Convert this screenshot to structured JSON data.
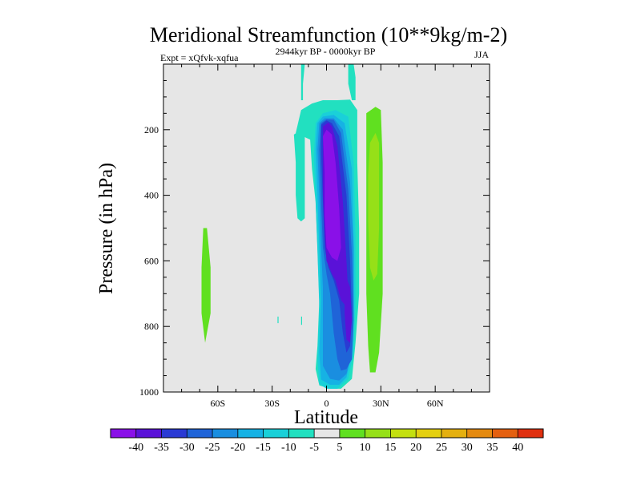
{
  "chart_data": {
    "type": "heatmap",
    "title": "Meridional Streamfunction (10**9kg/m-2)",
    "left_label": "Expt = xQfvk-xqfua",
    "center_label": "2944kyr BP - 0000kyr BP",
    "right_label": "JJA",
    "xlabel": "Latitude",
    "ylabel": "Pressure (in hPa)",
    "xlim": [
      -90,
      90
    ],
    "ylim": [
      1000,
      0
    ],
    "x_ticks": [
      {
        "value": -60,
        "label": "60S"
      },
      {
        "value": -30,
        "label": "30S"
      },
      {
        "value": 0,
        "label": "0"
      },
      {
        "value": 30,
        "label": "30N"
      },
      {
        "value": 60,
        "label": "60N"
      }
    ],
    "y_ticks": [
      {
        "value": 200,
        "label": "200"
      },
      {
        "value": 400,
        "label": "400"
      },
      {
        "value": 600,
        "label": "600"
      },
      {
        "value": 800,
        "label": "800"
      },
      {
        "value": 1000,
        "label": "1000"
      }
    ],
    "background_color": "#e6e6e6",
    "colorbar": {
      "levels": [
        -40,
        -35,
        -30,
        -25,
        -20,
        -15,
        -10,
        -5,
        5,
        10,
        15,
        20,
        25,
        30,
        35,
        40
      ],
      "labels": [
        "-40",
        "-35",
        "-30",
        "-25",
        "-20",
        "-15",
        "-10",
        "-5",
        "5",
        "10",
        "15",
        "20",
        "25",
        "30",
        "35",
        "40"
      ],
      "colors": [
        "#8a10e8",
        "#5a12d8",
        "#2a3ad4",
        "#1f64d8",
        "#1a8ee0",
        "#16b2e4",
        "#1ad0d8",
        "#22e0c0",
        "#e6e6e6",
        "#60e020",
        "#96e018",
        "#c4e010",
        "#e4d010",
        "#e4b010",
        "#e48a10",
        "#e46010",
        "#e03010"
      ]
    },
    "features": [
      {
        "name": "southern-cell-outer",
        "bin": 7,
        "points": [
          [
            -17,
            210
          ],
          [
            -14,
            140
          ],
          [
            -8,
            120
          ],
          [
            -2,
            110
          ],
          [
            6,
            110
          ],
          [
            13,
            108
          ],
          [
            17,
            140
          ],
          [
            17,
            300
          ],
          [
            18,
            500
          ],
          [
            18,
            700
          ],
          [
            16,
            850
          ],
          [
            14,
            960
          ],
          [
            8,
            990
          ],
          [
            2,
            990
          ],
          [
            -4,
            980
          ],
          [
            -6,
            930
          ],
          [
            -5,
            860
          ],
          [
            -4,
            720
          ],
          [
            -5,
            560
          ],
          [
            -6,
            420
          ],
          [
            -8,
            320
          ],
          [
            -9,
            230
          ]
        ]
      },
      {
        "name": "southern-cell-left-arm",
        "bin": 7,
        "points": [
          [
            -18,
            215
          ],
          [
            -14,
            200
          ],
          [
            -12,
            205
          ],
          [
            -12,
            300
          ],
          [
            -12,
            420
          ],
          [
            -12,
            470
          ],
          [
            -14,
            480
          ],
          [
            -16,
            470
          ],
          [
            -17,
            400
          ],
          [
            -17,
            300
          ]
        ]
      },
      {
        "name": "southern-cell-l6",
        "bin": 6,
        "points": [
          [
            -6,
            180
          ],
          [
            -2,
            150
          ],
          [
            5,
            140
          ],
          [
            12,
            160
          ],
          [
            15,
            300
          ],
          [
            16,
            520
          ],
          [
            16,
            720
          ],
          [
            15,
            880
          ],
          [
            12,
            960
          ],
          [
            6,
            990
          ],
          [
            0,
            990
          ],
          [
            -4,
            975
          ],
          [
            -5,
            900
          ],
          [
            -4,
            740
          ],
          [
            -5,
            570
          ],
          [
            -6,
            420
          ],
          [
            -7,
            280
          ]
        ]
      },
      {
        "name": "southern-cell-l5",
        "bin": 5,
        "points": [
          [
            -5,
            180
          ],
          [
            -2,
            160
          ],
          [
            4,
            155
          ],
          [
            10,
            180
          ],
          [
            14,
            320
          ],
          [
            15,
            540
          ],
          [
            15,
            740
          ],
          [
            14,
            880
          ],
          [
            11,
            955
          ],
          [
            7,
            978
          ],
          [
            2,
            978
          ],
          [
            -3,
            962
          ],
          [
            -4,
            880
          ],
          [
            -3,
            720
          ],
          [
            -4,
            560
          ],
          [
            -5,
            400
          ],
          [
            -6,
            260
          ]
        ]
      },
      {
        "name": "southern-cell-l4",
        "bin": 4,
        "points": [
          [
            -4,
            180
          ],
          [
            -1,
            165
          ],
          [
            4,
            165
          ],
          [
            9,
            200
          ],
          [
            13,
            360
          ],
          [
            15,
            560
          ],
          [
            15,
            760
          ],
          [
            14,
            880
          ],
          [
            11,
            945
          ],
          [
            7,
            965
          ],
          [
            2,
            960
          ],
          [
            -2,
            920
          ],
          [
            -2,
            820
          ],
          [
            -2,
            680
          ],
          [
            -3,
            560
          ],
          [
            -4,
            400
          ],
          [
            -5,
            260
          ]
        ]
      },
      {
        "name": "southern-cell-l3",
        "bin": 3,
        "points": [
          [
            -3,
            180
          ],
          [
            0,
            168
          ],
          [
            4,
            170
          ],
          [
            8,
            210
          ],
          [
            12,
            380
          ],
          [
            14,
            580
          ],
          [
            15,
            780
          ],
          [
            14,
            900
          ],
          [
            11,
            930
          ],
          [
            8,
            935
          ],
          [
            6,
            900
          ],
          [
            4,
            820
          ],
          [
            2,
            700
          ],
          [
            0,
            640
          ],
          [
            -2,
            560
          ],
          [
            -3,
            420
          ],
          [
            -4,
            260
          ]
        ]
      },
      {
        "name": "southern-cell-l2",
        "bin": 2,
        "points": [
          [
            -3,
            185
          ],
          [
            0,
            172
          ],
          [
            3,
            180
          ],
          [
            7,
            220
          ],
          [
            11,
            400
          ],
          [
            13,
            600
          ],
          [
            14,
            760
          ],
          [
            13,
            860
          ],
          [
            11,
            880
          ],
          [
            9,
            820
          ],
          [
            7,
            720
          ],
          [
            4,
            660
          ],
          [
            1,
            620
          ],
          [
            -1,
            560
          ],
          [
            -2,
            420
          ],
          [
            -3,
            270
          ]
        ]
      },
      {
        "name": "southern-cell-l1",
        "bin": 1,
        "points": [
          [
            -2,
            190
          ],
          [
            1,
            178
          ],
          [
            3,
            190
          ],
          [
            6,
            250
          ],
          [
            9,
            420
          ],
          [
            11,
            600
          ],
          [
            12,
            700
          ],
          [
            11,
            740
          ],
          [
            8,
            720
          ],
          [
            5,
            660
          ],
          [
            3,
            640
          ],
          [
            0,
            600
          ],
          [
            -1,
            520
          ],
          [
            -2,
            400
          ],
          [
            -2,
            280
          ]
        ]
      },
      {
        "name": "southern-cell-core",
        "bin": 0,
        "points": [
          [
            -2,
            220
          ],
          [
            0,
            200
          ],
          [
            3,
            215
          ],
          [
            5,
            300
          ],
          [
            7,
            440
          ],
          [
            8,
            560
          ],
          [
            6,
            600
          ],
          [
            3,
            590
          ],
          [
            0,
            560
          ],
          [
            -1,
            460
          ],
          [
            -1,
            330
          ]
        ]
      },
      {
        "name": "southern-cell-lower-core",
        "bin": 1,
        "points": [
          [
            10,
            640
          ],
          [
            13,
            680
          ],
          [
            14,
            780
          ],
          [
            13,
            850
          ],
          [
            11,
            840
          ],
          [
            10,
            760
          ]
        ]
      },
      {
        "name": "upper-left-filament",
        "bin": 7,
        "points": [
          [
            -14,
            0
          ],
          [
            -12,
            0
          ],
          [
            -13,
            60
          ],
          [
            -13,
            110
          ],
          [
            -14,
            110
          ],
          [
            -14,
            50
          ]
        ]
      },
      {
        "name": "upper-right-filament",
        "bin": 7,
        "points": [
          [
            12,
            0
          ],
          [
            15,
            0
          ],
          [
            16,
            40
          ],
          [
            16,
            110
          ],
          [
            14,
            110
          ],
          [
            12,
            60
          ]
        ]
      },
      {
        "name": "nh-positive-band",
        "bin": 9,
        "points": [
          [
            22,
            150
          ],
          [
            27,
            130
          ],
          [
            30,
            140
          ],
          [
            31,
            300
          ],
          [
            31,
            500
          ],
          [
            31,
            700
          ],
          [
            29,
            880
          ],
          [
            27,
            940
          ],
          [
            24,
            940
          ],
          [
            23,
            860
          ],
          [
            22,
            700
          ],
          [
            22,
            500
          ],
          [
            22,
            300
          ]
        ]
      },
      {
        "name": "nh-positive-core",
        "bin": 10,
        "points": [
          [
            24,
            240
          ],
          [
            27,
            210
          ],
          [
            29,
            240
          ],
          [
            29,
            360
          ],
          [
            29,
            500
          ],
          [
            28,
            640
          ],
          [
            26,
            660
          ],
          [
            24,
            620
          ],
          [
            23,
            480
          ],
          [
            23,
            340
          ]
        ]
      },
      {
        "name": "sh-positive-sliver",
        "bin": 9,
        "points": [
          [
            -68,
            500
          ],
          [
            -66,
            500
          ],
          [
            -64,
            620
          ],
          [
            -64,
            760
          ],
          [
            -67,
            850
          ],
          [
            -69,
            760
          ],
          [
            -69,
            620
          ]
        ]
      },
      {
        "name": "small-dash-1",
        "bin": 7,
        "points": [
          [
            -27,
            770
          ],
          [
            -26.5,
            770
          ],
          [
            -26.5,
            790
          ],
          [
            -27,
            790
          ]
        ]
      },
      {
        "name": "small-dash-2",
        "bin": 7,
        "points": [
          [
            -14,
            770
          ],
          [
            -13.5,
            770
          ],
          [
            -13.5,
            795
          ],
          [
            -14,
            795
          ]
        ]
      }
    ]
  }
}
